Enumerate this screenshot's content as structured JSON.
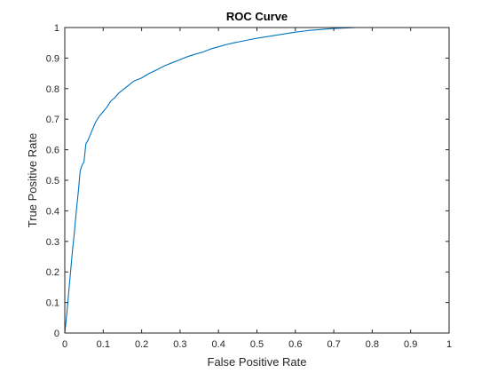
{
  "chart_data": {
    "type": "line",
    "title": "ROC Curve",
    "xlabel": "False Positive Rate",
    "ylabel": "True Positive Rate",
    "xlim": [
      0,
      1
    ],
    "ylim": [
      0,
      1
    ],
    "xticks": [
      "0",
      "0.1",
      "0.2",
      "0.3",
      "0.4",
      "0.5",
      "0.6",
      "0.7",
      "0.8",
      "0.9",
      "1"
    ],
    "yticks": [
      "0",
      "0.1",
      "0.2",
      "0.3",
      "0.4",
      "0.5",
      "0.6",
      "0.7",
      "0.8",
      "0.9",
      "1"
    ],
    "grid": false,
    "line_color": "#0072BD",
    "series": [
      {
        "x": [
          0,
          0.005,
          0.01,
          0.015,
          0.02,
          0.025,
          0.03,
          0.035,
          0.04,
          0.045,
          0.05,
          0.055,
          0.06,
          0.07,
          0.08,
          0.09,
          0.1,
          0.11,
          0.12,
          0.13,
          0.14,
          0.15,
          0.16,
          0.17,
          0.18,
          0.2,
          0.22,
          0.24,
          0.26,
          0.28,
          0.3,
          0.32,
          0.34,
          0.36,
          0.38,
          0.4,
          0.42,
          0.44,
          0.46,
          0.48,
          0.5,
          0.52,
          0.54,
          0.56,
          0.58,
          0.6,
          0.62,
          0.64,
          0.66,
          0.68,
          0.7,
          0.72,
          0.74,
          0.76,
          0.8,
          0.85,
          0.9,
          0.95,
          1.0
        ],
        "y": [
          0,
          0.06,
          0.13,
          0.2,
          0.27,
          0.33,
          0.4,
          0.46,
          0.53,
          0.55,
          0.56,
          0.62,
          0.63,
          0.66,
          0.69,
          0.71,
          0.725,
          0.74,
          0.76,
          0.77,
          0.785,
          0.795,
          0.805,
          0.815,
          0.825,
          0.835,
          0.85,
          0.862,
          0.875,
          0.885,
          0.895,
          0.905,
          0.913,
          0.92,
          0.93,
          0.937,
          0.944,
          0.95,
          0.955,
          0.96,
          0.965,
          0.969,
          0.973,
          0.977,
          0.981,
          0.985,
          0.988,
          0.991,
          0.993,
          0.995,
          0.997,
          0.998,
          0.999,
          1.0,
          1.0,
          1.0,
          1.0,
          1.0,
          1.0
        ]
      }
    ]
  }
}
